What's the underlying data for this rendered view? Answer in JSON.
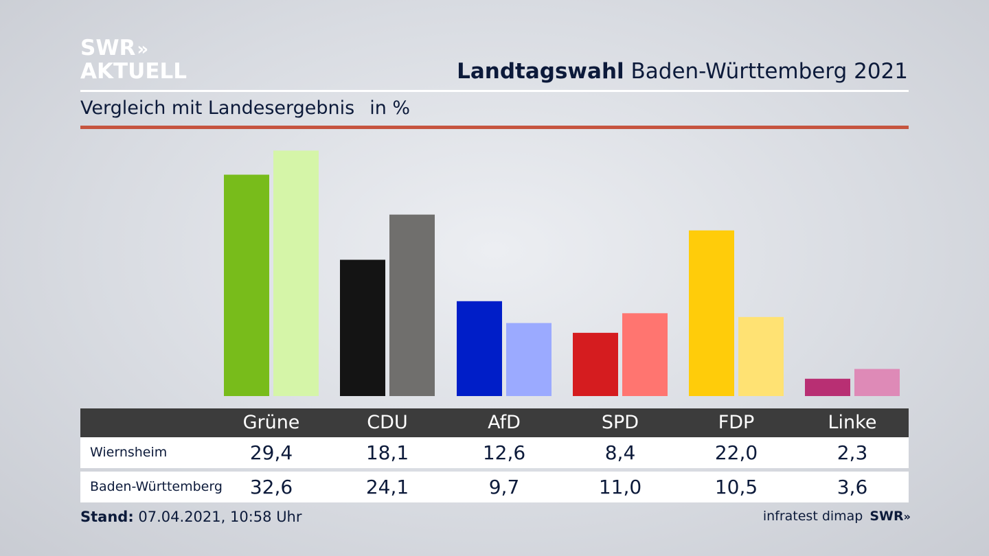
{
  "logo": {
    "line1": "SWR",
    "line2": "AKTUELL",
    "chevrons": "»"
  },
  "header": {
    "title_strong": "Landtagswahl",
    "title_rest": "Baden-Württemberg 2021",
    "subtitle": "Vergleich mit Landesergebnis",
    "unit": "in %"
  },
  "chart_data": {
    "type": "bar",
    "categories": [
      "Grüne",
      "CDU",
      "AfD",
      "SPD",
      "FDP",
      "Linke"
    ],
    "series": [
      {
        "name": "Wiernsheim",
        "values": [
          29.4,
          18.1,
          12.6,
          8.4,
          22.0,
          2.3
        ],
        "display": [
          "29,4",
          "18,1",
          "12,6",
          "8,4",
          "22,0",
          "2,3"
        ]
      },
      {
        "name": "Baden-Württemberg",
        "values": [
          32.6,
          24.1,
          9.7,
          11.0,
          10.5,
          3.6
        ],
        "display": [
          "32,6",
          "24,1",
          "9,7",
          "11,0",
          "10,5",
          "3,6"
        ]
      }
    ],
    "colors": {
      "primary": [
        "#78bc1b",
        "#141414",
        "#001ec8",
        "#d51c1f",
        "#ffcc0a",
        "#b82f73"
      ],
      "secondary": [
        "#d5f5a8",
        "#706f6d",
        "#9baaff",
        "#ff7570",
        "#ffe273",
        "#de8ab7"
      ]
    },
    "ylim": [
      0,
      33
    ],
    "grid": false,
    "legend": "table-below"
  },
  "footer": {
    "stand_label": "Stand:",
    "stand_value": "07.04.2021, 10:58 Uhr",
    "source": "infratest dimap",
    "brand": "SWR",
    "brand_chevrons": "»"
  }
}
